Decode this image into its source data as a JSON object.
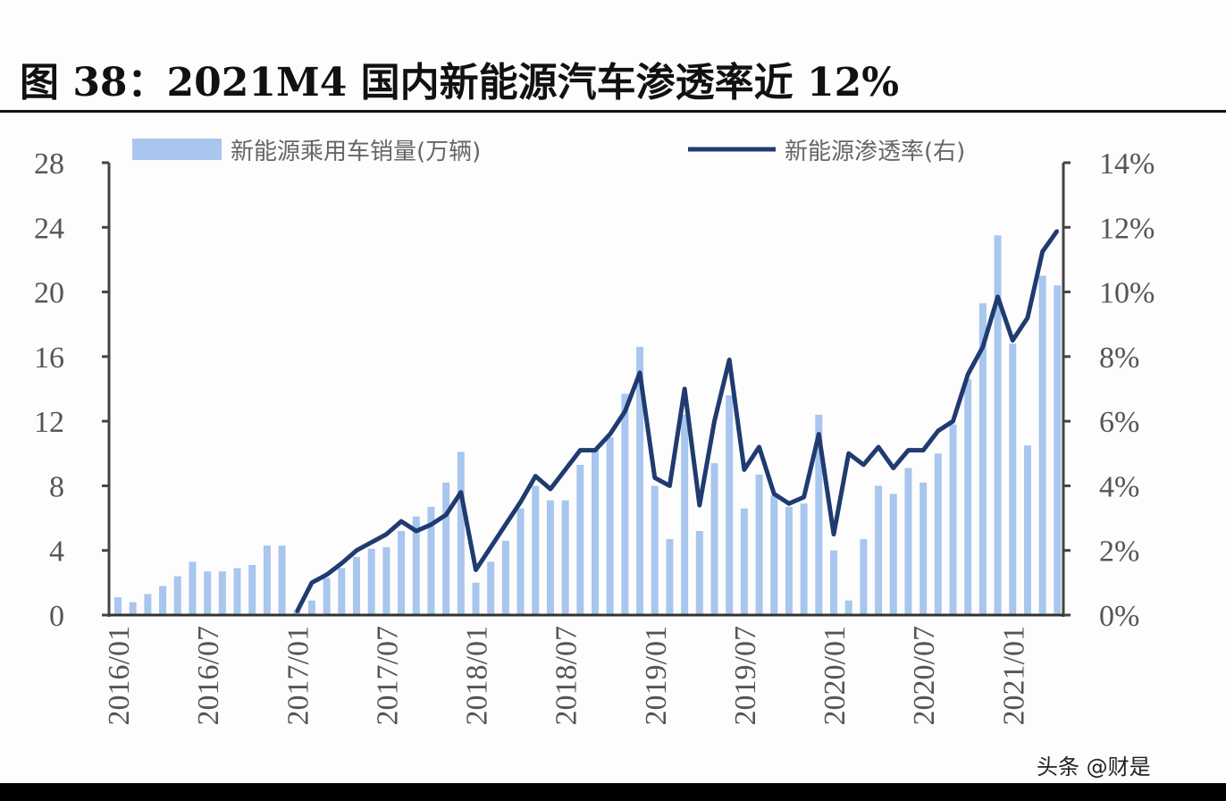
{
  "title": "图 38：2021M4 国内新能源汽车渗透率近 12%",
  "watermark": "头条 @财是",
  "chart_data": {
    "type": "bar+line",
    "title": "图 38：2021M4 国内新能源汽车渗透率近 12%",
    "colors": {
      "bar": "#a8c6ee",
      "line": "#1f3b70"
    },
    "x_tick_labels": [
      "2016/01",
      "2016/07",
      "2017/01",
      "2017/07",
      "2018/01",
      "2018/07",
      "2019/01",
      "2019/07",
      "2020/01",
      "2020/07",
      "2021/01"
    ],
    "x_range": [
      "2016/01",
      "2021/04"
    ],
    "y_left": {
      "range": [
        0,
        28
      ],
      "ticks": [
        "0",
        "4",
        "8",
        "12",
        "16",
        "20",
        "24",
        "28"
      ]
    },
    "y_right": {
      "range": [
        0,
        14
      ],
      "ticks": [
        "0%",
        "2%",
        "4%",
        "6%",
        "8%",
        "10%",
        "12%",
        "14%"
      ]
    },
    "legend_position": "top",
    "grid": false,
    "series": [
      {
        "name": "新能源乘用车销量(万辆)",
        "type": "bar",
        "axis": "left",
        "values": [
          1.1,
          0.8,
          1.3,
          1.8,
          2.4,
          3.3,
          2.7,
          2.7,
          2.9,
          3.1,
          4.3,
          4.3,
          0.3,
          0.9,
          2.3,
          2.9,
          3.6,
          4.1,
          4.2,
          5.2,
          6.1,
          6.7,
          8.2,
          10.1,
          2.0,
          3.3,
          4.6,
          6.6,
          8.0,
          7.1,
          7.1,
          9.3,
          10.2,
          11.0,
          13.7,
          16.6,
          8.0,
          4.7,
          12.4,
          5.2,
          9.4,
          13.6,
          6.6,
          8.7,
          7.4,
          6.7,
          6.9,
          12.4,
          4.0,
          0.9,
          4.7,
          8.0,
          7.5,
          9.1,
          8.2,
          10.0,
          11.8,
          14.6,
          19.3,
          23.5,
          16.8,
          10.5,
          21.0,
          20.4
        ]
      },
      {
        "name": "新能源渗透率(右)",
        "type": "line",
        "axis": "right",
        "unit": "%",
        "values": [
          null,
          null,
          null,
          null,
          null,
          null,
          null,
          null,
          null,
          null,
          null,
          null,
          0.1,
          1.0,
          1.25,
          1.6,
          2.0,
          2.25,
          2.5,
          2.9,
          2.6,
          2.8,
          3.1,
          3.8,
          1.4,
          2.1,
          2.8,
          3.5,
          4.3,
          3.9,
          4.5,
          5.1,
          5.1,
          5.6,
          6.3,
          7.5,
          4.25,
          4.0,
          7.0,
          3.4,
          6.0,
          7.9,
          4.5,
          5.2,
          3.75,
          3.45,
          3.65,
          5.6,
          2.5,
          5.0,
          4.65,
          5.2,
          4.55,
          5.1,
          5.1,
          5.7,
          6.0,
          7.45,
          8.3,
          9.85,
          8.5,
          9.2,
          11.25,
          11.9
        ]
      }
    ]
  }
}
